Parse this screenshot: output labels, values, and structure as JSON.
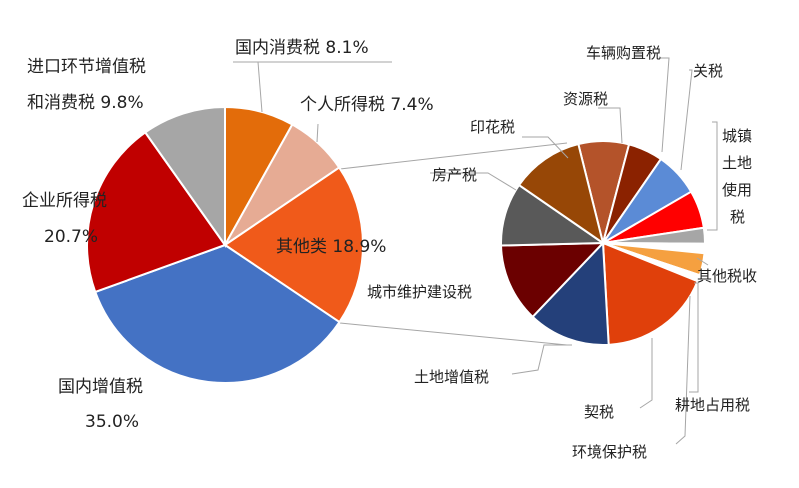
{
  "chart_data": {
    "type": "pie-of-pie",
    "title": "",
    "main_pie": {
      "slices": [
        {
          "name": "国内消费税",
          "value": 8.1,
          "label": "国内消费税 8.1%",
          "color": "#e36c0a"
        },
        {
          "name": "个人所得税",
          "value": 7.4,
          "label": "个人所得税 7.4%",
          "color": "#e6ab94"
        },
        {
          "name": "其他类",
          "value": 18.9,
          "label": "其他类 18.9%",
          "color": "#f05a1a"
        },
        {
          "name": "国内增值税",
          "value": 35.0,
          "label_line1": "国内增值税",
          "label_line2": "35.0%",
          "color": "#4472c4"
        },
        {
          "name": "企业所得税",
          "value": 20.7,
          "label_line1": "企业所得税",
          "label_line2": "20.7%",
          "color": "#c00000"
        },
        {
          "name": "进口环节增值税和消费税",
          "value": 9.8,
          "label_line1": "进口环节增值税",
          "label_line2": "和消费税 9.8%",
          "color": "#a6a6a6"
        }
      ]
    },
    "secondary_pie": {
      "source": "其他类",
      "slices": [
        {
          "name": "车辆购置税",
          "value": 8.0,
          "color": "#b4532a"
        },
        {
          "name": "关税",
          "value": 5.5,
          "color": "#8b2200"
        },
        {
          "name": "城镇土地使用税",
          "value": 7.0,
          "color": "#5b8bd6",
          "label_lines": [
            "城镇",
            "土地",
            "使用",
            "税"
          ]
        },
        {
          "name": "",
          "value": 6.0,
          "color": "#ff0000"
        },
        {
          "name": "其他税收",
          "value": 2.5,
          "color": "#a6a6a6"
        },
        {
          "name": "",
          "value": 1.5,
          "color": "#ffffff"
        },
        {
          "name": "耕地占用税",
          "value": 3.5,
          "color": "#f5a040"
        },
        {
          "name": "环境保护税",
          "value": 1.0,
          "color": "#ffffff"
        },
        {
          "name": "契税",
          "value": 18.0,
          "color": "#e0400b"
        },
        {
          "name": "土地增值税",
          "value": 13.0,
          "color": "#24407a"
        },
        {
          "name": "城市维护建设税",
          "value": 12.5,
          "color": "#6b0000"
        },
        {
          "name": "房产税",
          "value": 10.0,
          "color": "#595959"
        },
        {
          "name": "印花税",
          "value": 11.5,
          "color": "#974706"
        },
        {
          "name": "资源税",
          "value": 0,
          "color": "#c0c0c0"
        }
      ]
    }
  }
}
